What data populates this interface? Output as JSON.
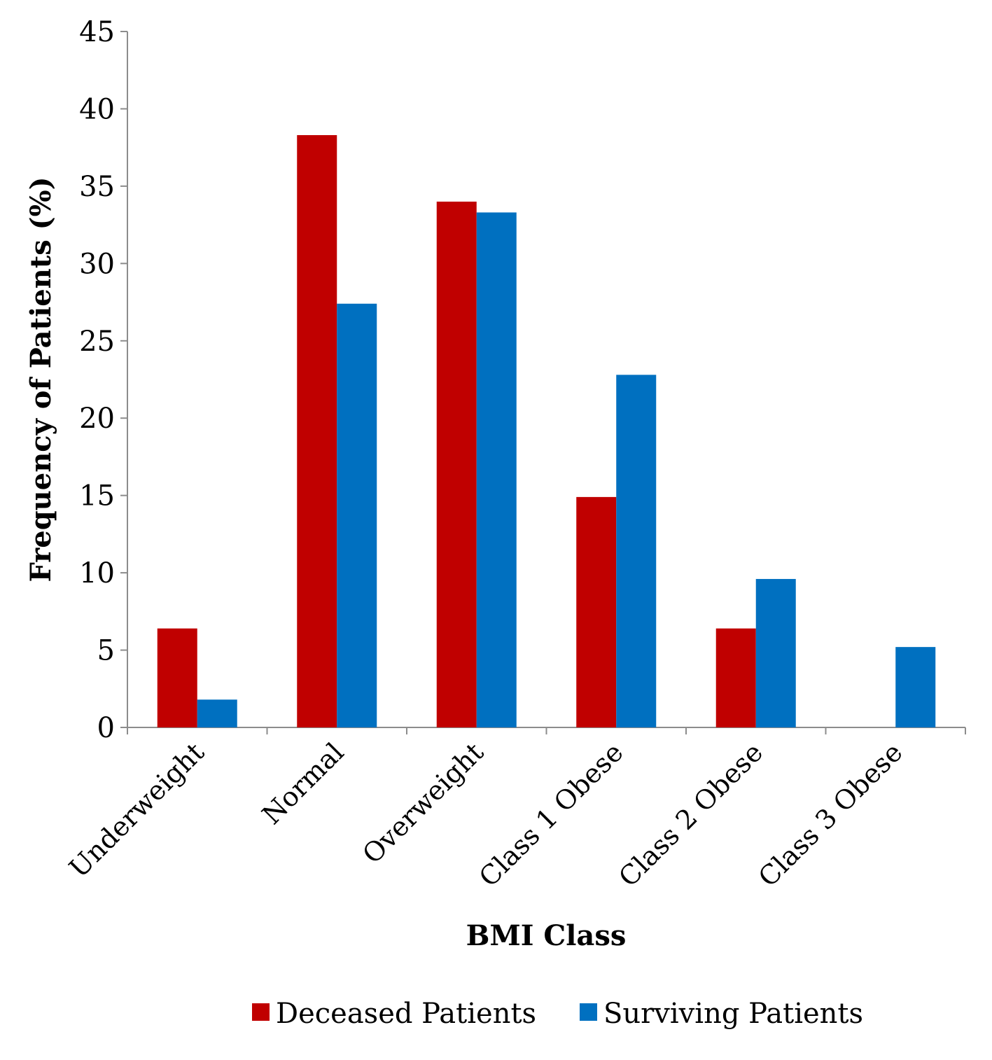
{
  "chart_data": {
    "type": "bar",
    "title": "",
    "xlabel": "BMI Class",
    "ylabel": "Frequency of Patients (%)",
    "ylim": [
      0,
      45
    ],
    "yticks": [
      "0",
      "5",
      "10",
      "15",
      "20",
      "25",
      "30",
      "35",
      "40",
      "45"
    ],
    "categories": [
      "Underweight",
      "Normal",
      "Overweight",
      "Class 1 Obese",
      "Class 2 Obese",
      "Class 3 Obese"
    ],
    "series": [
      {
        "name": "Deceased Patients",
        "color": "#c00000",
        "values": [
          6.4,
          38.3,
          34.0,
          14.9,
          6.4,
          0
        ]
      },
      {
        "name": "Surviving Patients",
        "color": "#0070c0",
        "values": [
          1.8,
          27.4,
          33.3,
          22.8,
          9.6,
          5.2
        ]
      }
    ],
    "grid": false,
    "legend_position": "bottom"
  }
}
